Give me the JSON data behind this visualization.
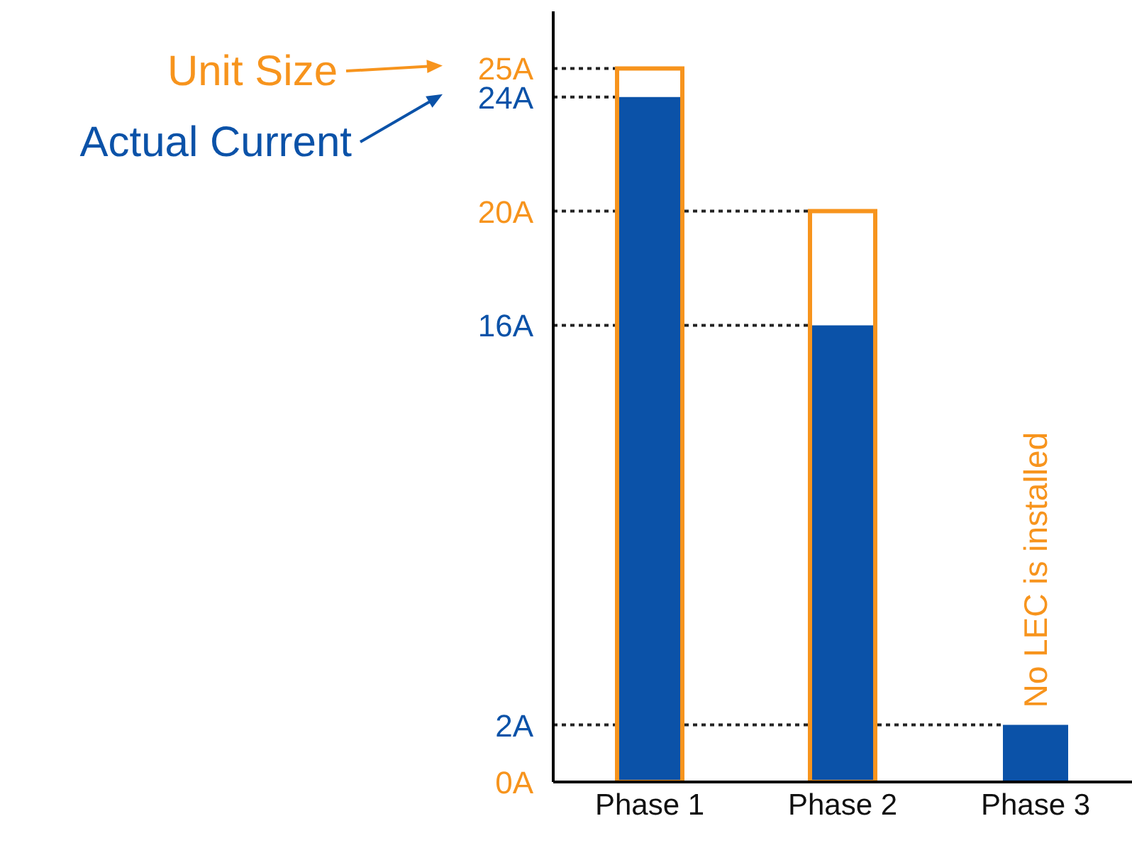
{
  "chart_data": {
    "type": "bar",
    "categories": [
      "Phase 1",
      "Phase 2",
      "Phase 3"
    ],
    "series": [
      {
        "name": "Unit Size",
        "color": "#f7941d",
        "values": [
          25,
          20,
          null
        ]
      },
      {
        "name": "Actual Current",
        "color": "#0b52a8",
        "values": [
          24,
          16,
          2
        ]
      }
    ],
    "ylim": [
      0,
      27
    ],
    "yticks": [
      {
        "value": 0,
        "label": "0A"
      },
      {
        "value": 2,
        "label": "2A"
      },
      {
        "value": 16,
        "label": "16A"
      },
      {
        "value": 20,
        "label": "20A"
      },
      {
        "value": 24,
        "label": "24A"
      },
      {
        "value": 25,
        "label": "25A"
      }
    ],
    "ref_lines": [
      {
        "axis": "y",
        "value": 2,
        "color": "#222222",
        "line_style": "dotted"
      },
      {
        "axis": "y",
        "value": 16,
        "color": "#222222",
        "line_style": "dotted"
      },
      {
        "axis": "y",
        "value": 20,
        "color": "#222222",
        "line_style": "dotted"
      },
      {
        "axis": "y",
        "value": 24,
        "color": "#222222",
        "line_style": "dotted"
      },
      {
        "axis": "y",
        "value": 25,
        "color": "#222222",
        "line_style": "dotted"
      }
    ],
    "annotations": [
      "No LEC is installed"
    ],
    "legend": "left"
  }
}
